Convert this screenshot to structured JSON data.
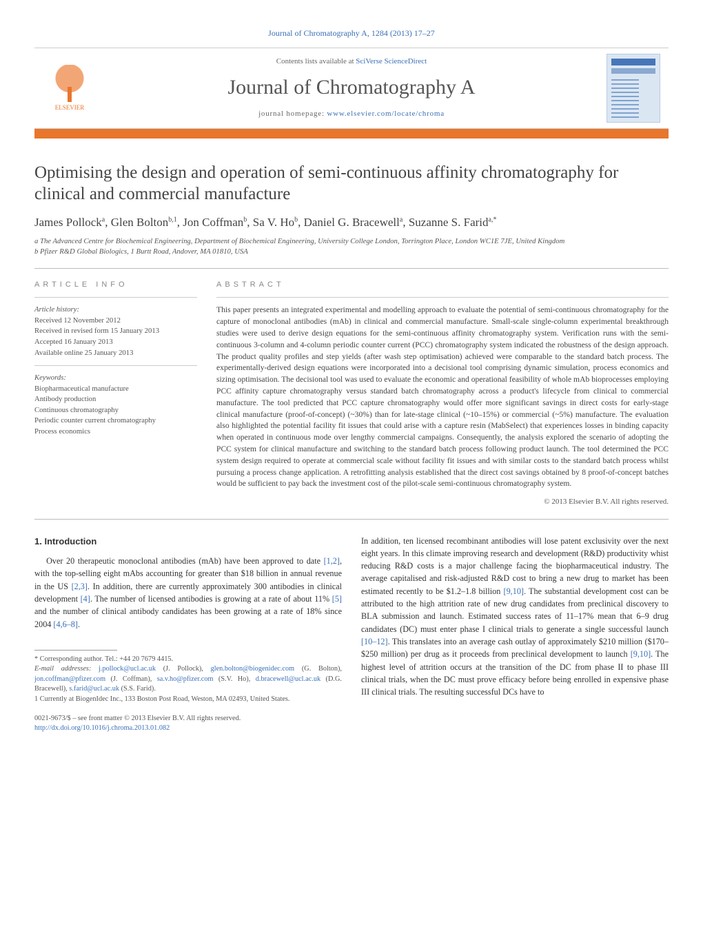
{
  "citation_line": "Journal of Chromatography A, 1284 (2013) 17–27",
  "header": {
    "contents_prefix": "Contents lists available at ",
    "contents_link": "SciVerse ScienceDirect",
    "journal_name": "Journal of Chromatography A",
    "homepage_prefix": "journal homepage: ",
    "homepage_link": "www.elsevier.com/locate/chroma",
    "elsevier_label": "ELSEVIER"
  },
  "title": "Optimising the design and operation of semi-continuous affinity chromatography for clinical and commercial manufacture",
  "authors_html": "James Pollock<sup>a</sup>, Glen Bolton<sup>b,1</sup>, Jon Coffman<sup>b</sup>, Sa V. Ho<sup>b</sup>, Daniel G. Bracewell<sup>a</sup>, Suzanne S. Farid<sup>a,*</sup>",
  "affiliations": [
    "a The Advanced Centre for Biochemical Engineering, Department of Biochemical Engineering, University College London, Torrington Place, London WC1E 7JE, United Kingdom",
    "b Pfizer R&D Global Biologics, 1 Burtt Road, Andover, MA 01810, USA"
  ],
  "article_info": {
    "heading": "ARTICLE INFO",
    "history_head": "Article history:",
    "history": [
      "Received 12 November 2012",
      "Received in revised form 15 January 2013",
      "Accepted 16 January 2013",
      "Available online 25 January 2013"
    ],
    "keywords_head": "Keywords:",
    "keywords": [
      "Biopharmaceutical manufacture",
      "Antibody production",
      "Continuous chromatography",
      "Periodic counter current chromatography",
      "Process economics"
    ]
  },
  "abstract": {
    "heading": "ABSTRACT",
    "text": "This paper presents an integrated experimental and modelling approach to evaluate the potential of semi-continuous chromatography for the capture of monoclonal antibodies (mAb) in clinical and commercial manufacture. Small-scale single-column experimental breakthrough studies were used to derive design equations for the semi-continuous affinity chromatography system. Verification runs with the semi-continuous 3-column and 4-column periodic counter current (PCC) chromatography system indicated the robustness of the design approach. The product quality profiles and step yields (after wash step optimisation) achieved were comparable to the standard batch process. The experimentally-derived design equations were incorporated into a decisional tool comprising dynamic simulation, process economics and sizing optimisation. The decisional tool was used to evaluate the economic and operational feasibility of whole mAb bioprocesses employing PCC affinity capture chromatography versus standard batch chromatography across a product's lifecycle from clinical to commercial manufacture. The tool predicted that PCC capture chromatography would offer more significant savings in direct costs for early-stage clinical manufacture (proof-of-concept) (~30%) than for late-stage clinical (~10–15%) or commercial (~5%) manufacture. The evaluation also highlighted the potential facility fit issues that could arise with a capture resin (MabSelect) that experiences losses in binding capacity when operated in continuous mode over lengthy commercial campaigns. Consequently, the analysis explored the scenario of adopting the PCC system for clinical manufacture and switching to the standard batch process following product launch. The tool determined the PCC system design required to operate at commercial scale without facility fit issues and with similar costs to the standard batch process whilst pursuing a process change application. A retrofitting analysis established that the direct cost savings obtained by 8 proof-of-concept batches would be sufficient to pay back the investment cost of the pilot-scale semi-continuous chromatography system.",
    "copyright": "© 2013 Elsevier B.V. All rights reserved."
  },
  "section1": {
    "heading": "1. Introduction",
    "para1_a": "Over 20 therapeutic monoclonal antibodies (mAb) have been approved to date ",
    "ref1": "[1,2]",
    "para1_b": ", with the top-selling eight mAbs accounting for greater than $18 billion in annual revenue in the US ",
    "ref2": "[2,3]",
    "para1_c": ". In addition, there are currently approximately 300 antibodies in clinical development ",
    "ref3": "[4]",
    "para1_d": ". The number of licensed antibodies is growing at a rate of about 11% ",
    "ref4": "[5]",
    "para1_e": " and the number of clinical antibody candidates has been growing at a rate of 18% since 2004 ",
    "ref5": "[4,6–8]",
    "para1_f": ".",
    "para2_a": "In addition, ten licensed recombinant antibodies will lose patent exclusivity over the next eight years. In this climate improving research and development (R&D) productivity whist reducing R&D costs is a major challenge facing the biopharmaceutical industry. The average capitalised and risk-adjusted R&D cost to bring a new drug to market has been estimated recently to be $1.2–1.8 billion ",
    "ref6": "[9,10]",
    "para2_b": ". The substantial development cost can be attributed to the high attrition rate of new drug candidates from preclinical discovery to BLA submission and launch. Estimated success rates of 11–17% mean that 6–9 drug candidates (DC) must enter phase I clinical trials to generate a single successful launch ",
    "ref7": "[10–12]",
    "para2_c": ". This translates into an average cash outlay of approximately $210 million ($170–$250 million) per drug as it proceeds from preclinical development to launch ",
    "ref8": "[9,10]",
    "para2_d": ". The highest level of attrition occurs at the transition of the DC from phase II to phase III clinical trials, when the DC must prove efficacy before being enrolled in expensive phase III clinical trials. The resulting successful DCs have to"
  },
  "footnotes": {
    "corr": "* Corresponding author. Tel.: +44 20 7679 4415.",
    "emails_label": "E-mail addresses: ",
    "emails": [
      {
        "addr": "j.pollock@ucl.ac.uk",
        "who": " (J. Pollock), "
      },
      {
        "addr": "glen.bolton@biogenidec.com",
        "who": " (G. Bolton), "
      },
      {
        "addr": "jon.coffman@pfizer.com",
        "who": " (J. Coffman), "
      },
      {
        "addr": "sa.v.ho@pfizer.com",
        "who": " (S.V. Ho), "
      },
      {
        "addr": "d.bracewell@ucl.ac.uk",
        "who": " (D.G. Bracewell), "
      },
      {
        "addr": "s.farid@ucl.ac.uk",
        "who": " (S.S. Farid)."
      }
    ],
    "note1": "1 Currently at BiogenIdec Inc., 133 Boston Post Road, Weston, MA 02493, United States."
  },
  "bottom": {
    "line1": "0021-9673/$ – see front matter © 2013 Elsevier B.V. All rights reserved.",
    "doi": "http://dx.doi.org/10.1016/j.chroma.2013.01.082"
  },
  "colors": {
    "orange": "#e8762d",
    "link": "#3a6fb7"
  }
}
